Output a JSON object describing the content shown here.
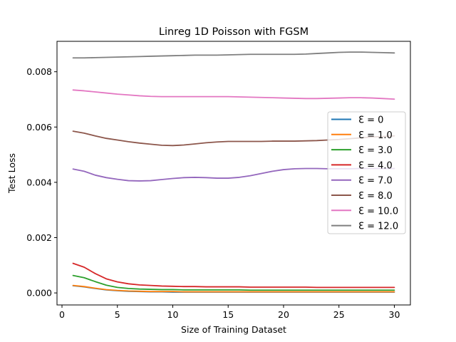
{
  "chart_data": {
    "type": "line",
    "title": "Linreg 1D Poisson with FGSM",
    "xlabel": "Size of Training Dataset",
    "ylabel": "Test Loss",
    "xlim": [
      -0.45,
      31.45
    ],
    "ylim": [
      -0.000435,
      0.0091
    ],
    "xticks": [
      0,
      5,
      10,
      15,
      20,
      25,
      30
    ],
    "xtick_labels": [
      "0",
      "5",
      "10",
      "15",
      "20",
      "25",
      "30"
    ],
    "yticks": [
      0.0,
      0.002,
      0.004,
      0.006,
      0.008
    ],
    "ytick_labels": [
      "0.000",
      "0.002",
      "0.004",
      "0.006",
      "0.008"
    ],
    "grid": false,
    "legend_position": "center-right",
    "x": [
      1,
      2,
      3,
      4,
      5,
      6,
      7,
      8,
      9,
      10,
      11,
      12,
      13,
      14,
      15,
      16,
      17,
      18,
      19,
      20,
      21,
      22,
      23,
      24,
      25,
      26,
      27,
      28,
      29,
      30
    ],
    "series": [
      {
        "name": "Ɛ = 0",
        "color": "#1f77b4",
        "values": [
          0.00026,
          0.00022,
          0.00016,
          0.00011,
          8e-05,
          6e-05,
          5e-05,
          4e-05,
          4e-05,
          3e-05,
          3e-05,
          3e-05,
          3e-05,
          3e-05,
          3e-05,
          3e-05,
          3e-05,
          3e-05,
          3e-05,
          3e-05,
          3e-05,
          3e-05,
          3e-05,
          3e-05,
          3e-05,
          3e-05,
          3e-05,
          3e-05,
          3e-05,
          3e-05
        ]
      },
      {
        "name": "Ɛ = 1.0",
        "color": "#ff7f0e",
        "values": [
          0.00027,
          0.00023,
          0.00017,
          0.00012,
          9e-05,
          7e-05,
          6e-05,
          5e-05,
          5e-05,
          5e-05,
          4e-05,
          4e-05,
          4e-05,
          4e-05,
          4e-05,
          4e-05,
          4e-05,
          4e-05,
          4e-05,
          4e-05,
          4e-05,
          4e-05,
          4e-05,
          4e-05,
          4e-05,
          4e-05,
          4e-05,
          4e-05,
          4e-05,
          4e-05
        ]
      },
      {
        "name": "Ɛ = 3.0",
        "color": "#2ca02c",
        "values": [
          0.00063,
          0.00055,
          0.00041,
          0.00028,
          0.0002,
          0.00016,
          0.00014,
          0.00013,
          0.00012,
          0.00012,
          0.00011,
          0.00011,
          0.00011,
          0.00011,
          0.00011,
          0.00011,
          0.0001,
          0.0001,
          0.0001,
          0.0001,
          0.0001,
          0.0001,
          0.0001,
          0.0001,
          0.0001,
          0.0001,
          0.0001,
          0.0001,
          0.0001,
          0.0001
        ]
      },
      {
        "name": "Ɛ = 4.0",
        "color": "#d62728",
        "values": [
          0.00107,
          0.00093,
          0.0007,
          0.00051,
          0.0004,
          0.00033,
          0.00029,
          0.00027,
          0.00025,
          0.00024,
          0.00023,
          0.00023,
          0.00022,
          0.00022,
          0.00022,
          0.00022,
          0.00021,
          0.00021,
          0.00021,
          0.00021,
          0.00021,
          0.00021,
          0.0002,
          0.0002,
          0.0002,
          0.0002,
          0.0002,
          0.0002,
          0.0002,
          0.0002
        ]
      },
      {
        "name": "Ɛ = 7.0",
        "color": "#9467bd",
        "values": [
          0.00448,
          0.0044,
          0.00426,
          0.00417,
          0.00411,
          0.00406,
          0.00405,
          0.00406,
          0.0041,
          0.00414,
          0.00417,
          0.00418,
          0.00417,
          0.00415,
          0.00415,
          0.00418,
          0.00424,
          0.00432,
          0.0044,
          0.00446,
          0.00449,
          0.0045,
          0.0045,
          0.00449,
          0.00449,
          0.00449,
          0.0045,
          0.0045,
          0.0045,
          0.0045
        ]
      },
      {
        "name": "Ɛ = 8.0",
        "color": "#8c564b",
        "values": [
          0.00585,
          0.00578,
          0.00568,
          0.00559,
          0.00553,
          0.00547,
          0.00542,
          0.00538,
          0.00534,
          0.00533,
          0.00535,
          0.00539,
          0.00543,
          0.00546,
          0.00548,
          0.00548,
          0.00548,
          0.00548,
          0.00549,
          0.00549,
          0.00549,
          0.0055,
          0.00551,
          0.00553,
          0.00555,
          0.00558,
          0.00561,
          0.00564,
          0.00566,
          0.00568
        ]
      },
      {
        "name": "Ɛ = 10.0",
        "color": "#e377c2",
        "values": [
          0.00734,
          0.00731,
          0.00727,
          0.00723,
          0.00719,
          0.00716,
          0.00713,
          0.00711,
          0.0071,
          0.0071,
          0.0071,
          0.0071,
          0.0071,
          0.0071,
          0.0071,
          0.00709,
          0.00708,
          0.00707,
          0.00706,
          0.00705,
          0.00704,
          0.00703,
          0.00703,
          0.00704,
          0.00705,
          0.00706,
          0.00706,
          0.00705,
          0.00703,
          0.00701
        ]
      },
      {
        "name": "Ɛ = 12.0",
        "color": "#7f7f7f",
        "values": [
          0.0085,
          0.0085,
          0.00851,
          0.00852,
          0.00853,
          0.00854,
          0.00855,
          0.00856,
          0.00857,
          0.00858,
          0.00859,
          0.0086,
          0.0086,
          0.0086,
          0.00861,
          0.00862,
          0.00863,
          0.00863,
          0.00863,
          0.00863,
          0.00863,
          0.00864,
          0.00866,
          0.00868,
          0.0087,
          0.00871,
          0.00871,
          0.0087,
          0.00869,
          0.00868
        ]
      }
    ]
  }
}
